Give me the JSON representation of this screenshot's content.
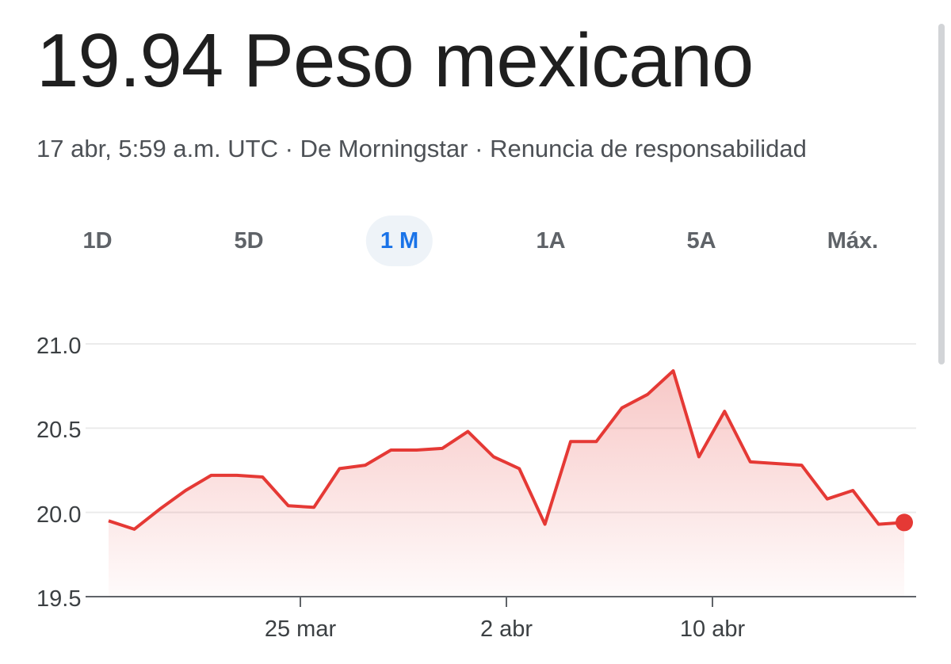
{
  "header": {
    "title": "19.94 Peso mexicano",
    "timestamp": "17 abr, 5:59 a.m. UTC",
    "separator": "·",
    "source": "De Morningstar",
    "disclaimer": "Renuncia de responsabilidad"
  },
  "ranges": {
    "options": [
      "1D",
      "5D",
      "1 M",
      "1A",
      "5A",
      "Máx."
    ],
    "selected": "1 M"
  },
  "colors": {
    "line": "#e53935",
    "accent": "#1a73e8"
  },
  "chart_data": {
    "type": "area",
    "title": "",
    "xlabel": "",
    "ylabel": "",
    "ylim": [
      19.5,
      21.0
    ],
    "yticks": [
      "21.0",
      "20.5",
      "20.0",
      "19.5"
    ],
    "xticks": [
      "25 mar",
      "2 abr",
      "10 abr"
    ],
    "grid": true,
    "series": [
      {
        "values": [
          19.95,
          19.9,
          20.02,
          20.13,
          20.22,
          20.22,
          20.21,
          20.04,
          20.03,
          20.26,
          20.28,
          20.37,
          20.37,
          20.38,
          20.48,
          20.33,
          20.26,
          19.93,
          20.42,
          20.42,
          20.62,
          20.7,
          20.84,
          20.33,
          20.6,
          20.3,
          20.29,
          20.28,
          20.08,
          20.13,
          19.93,
          19.94
        ]
      }
    ],
    "last_value": 19.94
  }
}
